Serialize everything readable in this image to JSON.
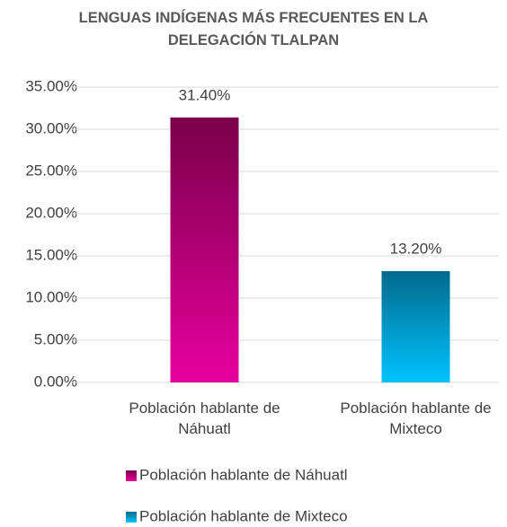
{
  "chart_data": {
    "type": "bar",
    "title": "LENGUAS INDÍGENAS MÁS FRECUENTES EN LA DELEGACIÓN TLALPAN",
    "categories": [
      "Población hablante de Náhuatl",
      "Población hablante de Mixteco"
    ],
    "series": [
      {
        "name": "Población hablante de Náhuatl",
        "color": "#e6009e",
        "color_top": "#7a0049",
        "values": [
          31.4,
          null
        ],
        "value_labels": [
          "31.40%",
          null
        ]
      },
      {
        "name": "Población hablante de Mixteco",
        "color": "#00c2ff",
        "color_top": "#006a8c",
        "values": [
          null,
          13.2
        ],
        "value_labels": [
          null,
          "13.20%"
        ]
      }
    ],
    "ylim": [
      0,
      35
    ],
    "yticks": [
      {
        "value": 0,
        "label": "0.00%"
      },
      {
        "value": 5,
        "label": "5.00%"
      },
      {
        "value": 10,
        "label": "10.00%"
      },
      {
        "value": 15,
        "label": "15.00%"
      },
      {
        "value": 20,
        "label": "20.00%"
      },
      {
        "value": 25,
        "label": "25.00%"
      },
      {
        "value": 30,
        "label": "30.00%"
      },
      {
        "value": 35,
        "label": "35.00%"
      }
    ],
    "grid": true,
    "legend": "bottom"
  }
}
